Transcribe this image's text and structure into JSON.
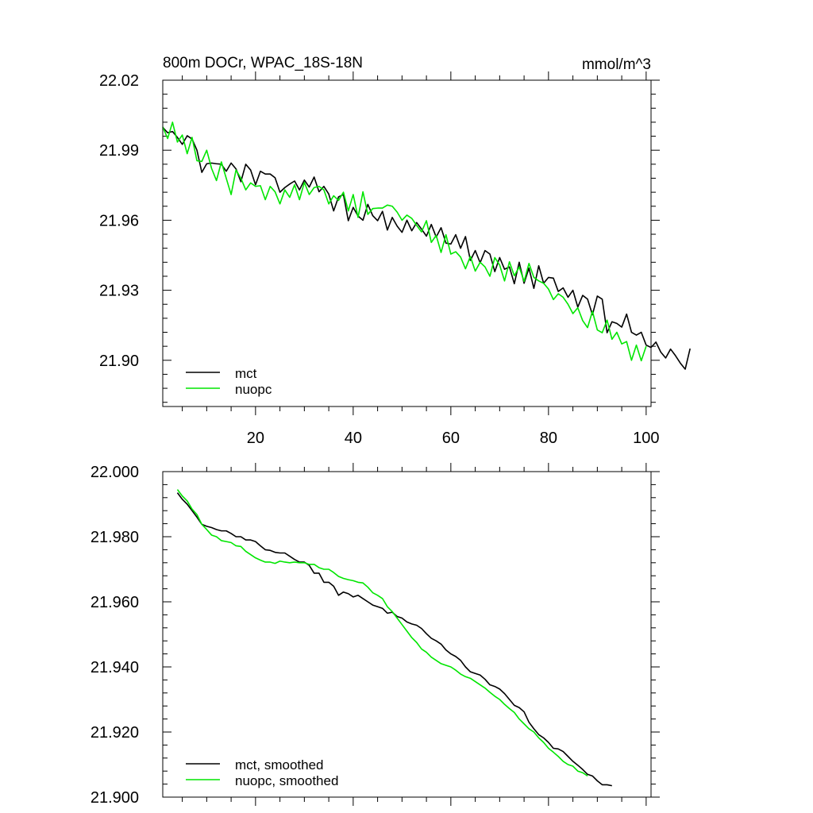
{
  "chart_data": [
    {
      "type": "line",
      "title_left": "800m DOCr, WPAC_18S-18N",
      "title_right": "mmol/m^3",
      "xlim": [
        1,
        101
      ],
      "ylim": [
        21.8802,
        22.02
      ],
      "x_ticks": [
        20,
        40,
        60,
        80,
        100
      ],
      "x_tick_labels": [
        "20",
        "40",
        "60",
        "80",
        "100"
      ],
      "x_minor_ticks": [
        5,
        10,
        15,
        25,
        30,
        35,
        45,
        50,
        55,
        65,
        70,
        75,
        85,
        90,
        95
      ],
      "y_ticks": [
        22.02,
        21.99,
        21.96,
        21.93,
        21.9
      ],
      "y_tick_labels": [
        "22.02",
        "21.99",
        "21.96",
        "21.93",
        "21.90"
      ],
      "y_minor_step": 0.006,
      "legend": [
        "mct",
        "nuopc"
      ],
      "series": [
        {
          "name": "mct",
          "color": "#000000",
          "x_start": 1,
          "values": [
            21.9998,
            21.9975,
            21.998,
            21.9955,
            21.9925,
            21.9962,
            21.9948,
            21.99,
            21.9805,
            21.9842,
            21.9845,
            21.9842,
            21.984,
            21.981,
            21.9845,
            21.982,
            21.9765,
            21.984,
            21.9815,
            21.9752,
            21.981,
            21.9798,
            21.9798,
            21.9782,
            21.972,
            21.974,
            21.9755,
            21.9768,
            21.973,
            21.9772,
            21.9742,
            21.9785,
            21.9722,
            21.9745,
            21.9712,
            21.964,
            21.97,
            21.971,
            21.9598,
            21.9655,
            21.9618,
            21.96,
            21.9668,
            21.962,
            21.9598,
            21.9638,
            21.9558,
            21.9612,
            21.9575,
            21.9548,
            21.96,
            21.9555,
            21.959,
            21.9562,
            21.9532,
            21.9582,
            21.9528,
            21.9568,
            21.9502,
            21.9498,
            21.9538,
            21.948,
            21.953,
            21.9428,
            21.947,
            21.9418,
            21.947,
            21.9455,
            21.938,
            21.944,
            21.939,
            21.94,
            21.9328,
            21.942,
            21.933,
            21.9395,
            21.9308,
            21.9405,
            21.933,
            21.9355,
            21.9352,
            21.9295,
            21.931,
            21.927,
            21.93,
            21.9228,
            21.9278,
            21.9262,
            21.9195,
            21.9275,
            21.9262,
            21.9118,
            21.9165,
            21.9158,
            21.9142,
            21.9198,
            21.912,
            21.9108,
            21.912,
            21.9065,
            21.9055,
            21.9078,
            21.9035,
            21.901,
            21.9048,
            21.902,
            21.8988,
            21.8962,
            21.905
          ]
        },
        {
          "name": "nuopc",
          "color": "#00e600",
          "x_start": 1,
          "values": [
            22.0,
            21.995,
            22.002,
            21.9935,
            21.9965,
            21.9885,
            21.9955,
            21.9855,
            21.9852,
            21.99,
            21.9822,
            21.977,
            21.985,
            21.978,
            21.971,
            21.9815,
            21.978,
            21.973,
            21.976,
            21.9745,
            21.9748,
            21.9688,
            21.9745,
            21.9722,
            21.967,
            21.973,
            21.9698,
            21.9752,
            21.9688,
            21.9762,
            21.971,
            21.974,
            21.9745,
            21.973,
            21.967,
            21.9705,
            21.9685,
            21.972,
            21.964,
            21.971,
            21.9612,
            21.9722,
            21.9625,
            21.965,
            21.9652,
            21.9652,
            21.9665,
            21.966,
            21.9635,
            21.96,
            21.9622,
            21.9608,
            21.9578,
            21.955,
            21.9598,
            21.9505,
            21.9535,
            21.9462,
            21.9538,
            21.9455,
            21.9465,
            21.9442,
            21.9392,
            21.9445,
            21.9382,
            21.942,
            21.94,
            21.936,
            21.944,
            21.9408,
            21.934,
            21.9422,
            21.9362,
            21.94,
            21.9338,
            21.9415,
            21.9355,
            21.934,
            21.933,
            21.9305,
            21.926,
            21.9285,
            21.927,
            21.924,
            21.92,
            21.9225,
            21.917,
            21.914,
            21.921,
            21.913,
            21.9118,
            21.9172,
            21.909,
            21.912,
            21.907,
            21.908,
            21.9,
            21.9065,
            21.8998,
            21.906
          ]
        }
      ]
    },
    {
      "type": "line",
      "title_left": "",
      "title_right": "",
      "xlim": [
        1,
        101
      ],
      "ylim": [
        21.9,
        22.0
      ],
      "x_ticks": [
        20,
        40,
        60,
        80,
        100
      ],
      "x_tick_labels": [],
      "x_minor_ticks": [
        5,
        10,
        15,
        25,
        30,
        35,
        45,
        50,
        55,
        65,
        70,
        75,
        85,
        90,
        95
      ],
      "y_ticks": [
        22.0,
        21.98,
        21.96,
        21.94,
        21.92,
        21.9
      ],
      "y_tick_labels": [
        "22.000",
        "21.980",
        "21.960",
        "21.940",
        "21.920",
        "21.900"
      ],
      "y_minor_step": 0.004,
      "legend": [
        "mct, smoothed",
        "nuopc, smoothed"
      ],
      "series": [
        {
          "name": "mct, smoothed",
          "color": "#000000",
          "x_start": 4,
          "values": [
            21.9935,
            21.9915,
            21.99,
            21.988,
            21.986,
            21.9838,
            21.9832,
            21.9828,
            21.9822,
            21.9818,
            21.9818,
            21.981,
            21.98,
            21.98,
            21.979,
            21.979,
            21.9785,
            21.9772,
            21.976,
            21.9758,
            21.9752,
            21.975,
            21.975,
            21.974,
            21.973,
            21.9722,
            21.9722,
            21.9712,
            21.9688,
            21.9688,
            21.966,
            21.966,
            21.9648,
            21.962,
            21.963,
            21.9625,
            21.9615,
            21.962,
            21.961,
            21.96,
            21.959,
            21.9585,
            21.958,
            21.9565,
            21.9568,
            21.9555,
            21.955,
            21.9538,
            21.9532,
            21.9528,
            21.9518,
            21.9502,
            21.9488,
            21.948,
            21.947,
            21.9452,
            21.944,
            21.9432,
            21.942,
            21.94,
            21.9385,
            21.938,
            21.9375,
            21.9362,
            21.9345,
            21.934,
            21.9332,
            21.9318,
            21.93,
            21.9282,
            21.9275,
            21.9262,
            21.923,
            21.921,
            21.9192,
            21.9182,
            21.9168,
            21.915,
            21.9148,
            21.914,
            21.9125,
            21.911,
            21.9098,
            21.9085,
            21.907,
            21.9065,
            21.905,
            21.9038,
            21.9038,
            21.9035
          ]
        },
        {
          "name": "nuopc, smoothed",
          "color": "#00e600",
          "x_start": 4,
          "values": [
            21.9945,
            21.9925,
            21.991,
            21.9885,
            21.9868,
            21.9838,
            21.9822,
            21.9805,
            21.98,
            21.9788,
            21.9785,
            21.9782,
            21.9772,
            21.977,
            21.9755,
            21.9745,
            21.9735,
            21.9728,
            21.9722,
            21.9722,
            21.9718,
            21.9725,
            21.9722,
            21.972,
            21.9722,
            21.972,
            21.972,
            21.9715,
            21.9715,
            21.9705,
            21.97,
            21.97,
            21.969,
            21.9678,
            21.9672,
            21.9668,
            21.9665,
            21.966,
            21.9658,
            21.9645,
            21.9628,
            21.962,
            21.961,
            21.9585,
            21.957,
            21.955,
            21.953,
            21.951,
            21.949,
            21.9475,
            21.9455,
            21.9445,
            21.943,
            21.942,
            21.941,
            21.9405,
            21.94,
            21.939,
            21.9378,
            21.937,
            21.9365,
            21.9355,
            21.9345,
            21.9335,
            21.9322,
            21.931,
            21.93,
            21.9285,
            21.9272,
            21.926,
            21.924,
            21.9225,
            21.921,
            21.92,
            21.9182,
            21.9168,
            21.915,
            21.9138,
            21.9125,
            21.911,
            21.91,
            21.9095,
            21.908,
            21.9075,
            21.9065
          ]
        }
      ]
    }
  ]
}
